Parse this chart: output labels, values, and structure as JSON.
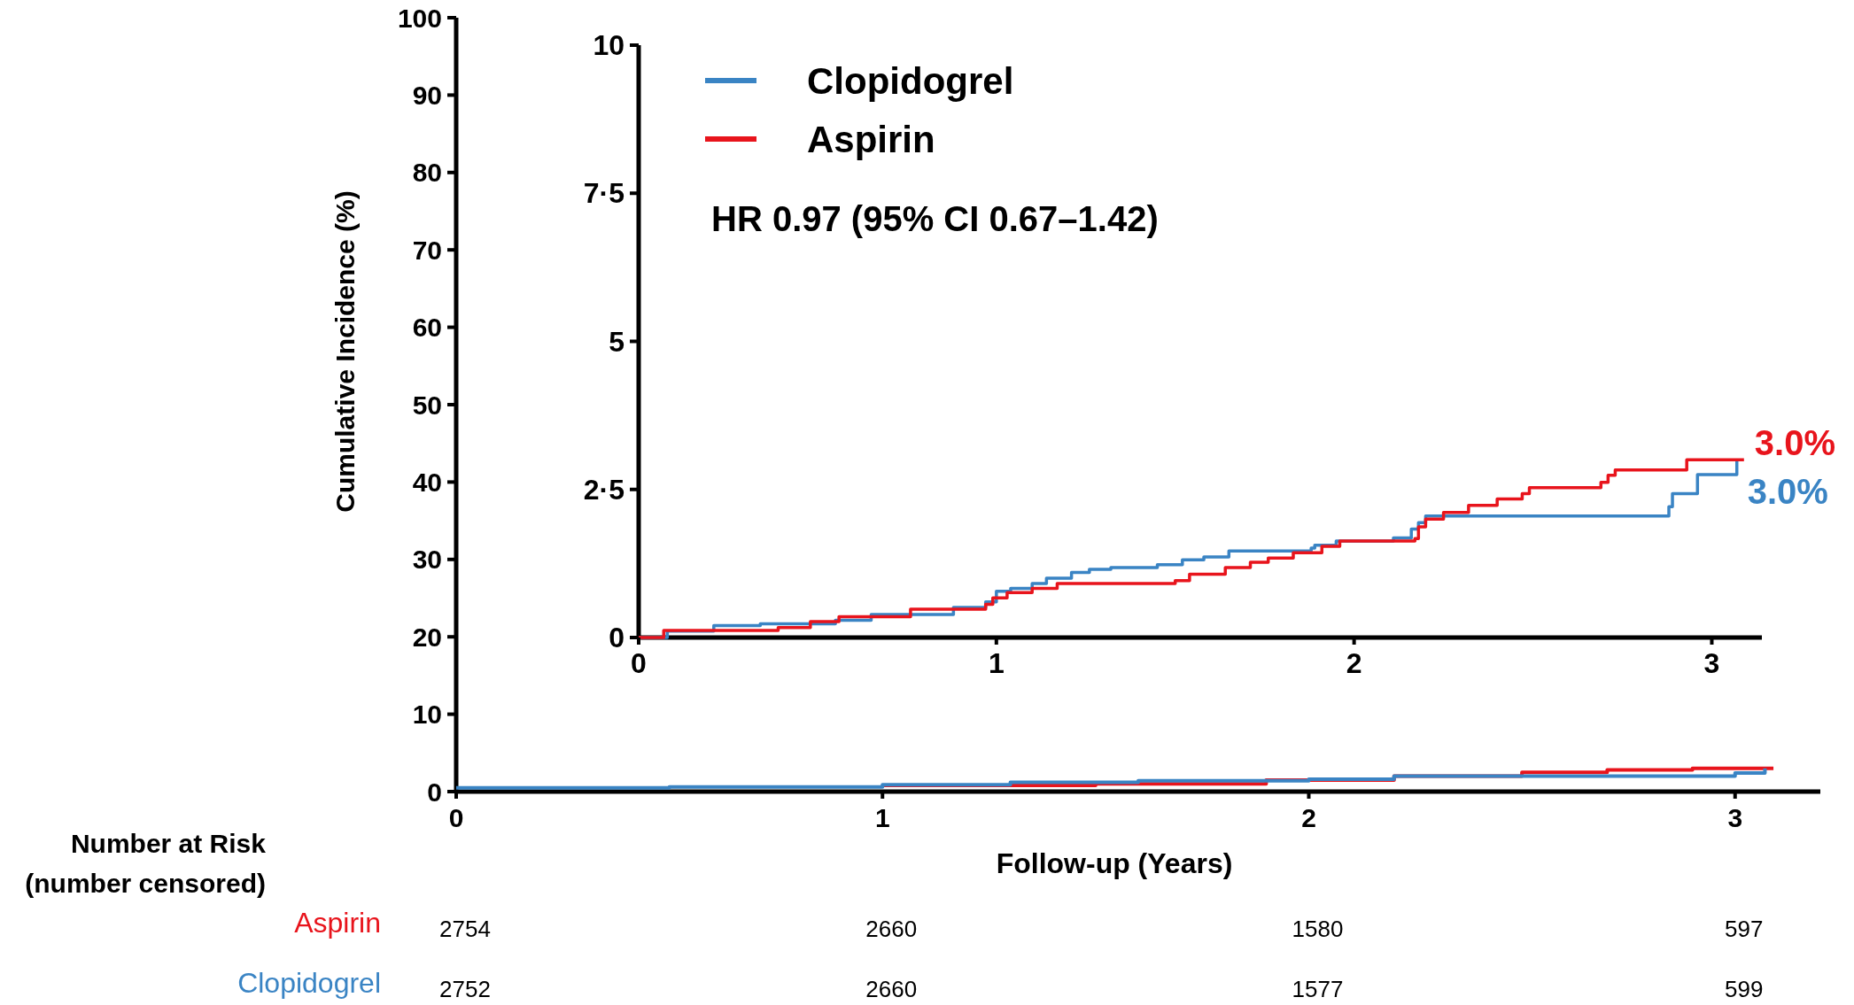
{
  "chart_data": [
    {
      "type": "step",
      "xlabel": "Follow-up (Years)",
      "ylabel": "Cumulative Incidence (%)",
      "xlim": [
        0,
        3.2
      ],
      "ylim": [
        0,
        100
      ],
      "xticks": [
        0,
        1,
        2,
        3
      ],
      "yticks": [
        0,
        10,
        20,
        30,
        40,
        50,
        60,
        70,
        80,
        90,
        100
      ],
      "grid": false,
      "legend": false,
      "series": [
        {
          "color": "#e8141c",
          "x": [
            1.0,
            1.5,
            1.9,
            2.2,
            2.5,
            2.7,
            2.9,
            3.09
          ],
          "values": [
            0.8,
            1.0,
            1.5,
            2.0,
            2.5,
            2.8,
            3.0,
            3.0
          ]
        },
        {
          "color": "#3a84c4",
          "x": [
            0,
            0.5,
            1.0,
            1.3,
            1.6,
            2.0,
            2.2,
            2.9,
            3.0,
            3.07
          ],
          "values": [
            0.5,
            0.6,
            0.9,
            1.2,
            1.4,
            1.6,
            2.0,
            2.0,
            2.4,
            3.0
          ]
        }
      ],
      "annotations": [
        "Number at Risk",
        "(number censored)",
        "Aspirin",
        "2754",
        "2660",
        "1580",
        "597",
        "Clopidogrel",
        "2752",
        "2660",
        "1577",
        "599"
      ]
    },
    {
      "type": "step",
      "xlim": [
        0,
        3.14
      ],
      "ylim": [
        0,
        10
      ],
      "xticks": [
        0,
        1,
        2,
        3
      ],
      "yticks": [
        0,
        {
          "value": 2.5,
          "label": "2·5"
        },
        5,
        {
          "value": 7.5,
          "label": "7·5"
        },
        10
      ],
      "grid": false,
      "legend": "top left",
      "series": [
        {
          "name": "Clopidogrel",
          "color": "#3a84c4",
          "x": [
            0,
            0.08,
            0.21,
            0.34,
            0.55,
            0.65,
            0.88,
            0.97,
            1.0,
            1.04,
            1.1,
            1.14,
            1.21,
            1.26,
            1.32,
            1.45,
            1.52,
            1.58,
            1.65,
            1.88,
            1.89,
            1.95,
            2.11,
            2.16,
            2.18,
            2.2,
            2.87,
            2.88,
            2.89,
            2.95,
            2.96,
            3.03,
            3.07
          ],
          "values": [
            0,
            0.11,
            0.2,
            0.23,
            0.29,
            0.39,
            0.51,
            0.6,
            0.78,
            0.83,
            0.91,
            1.0,
            1.1,
            1.15,
            1.18,
            1.23,
            1.31,
            1.36,
            1.46,
            1.51,
            1.56,
            1.63,
            1.68,
            1.83,
            1.94,
            2.05,
            2.05,
            2.21,
            2.43,
            2.43,
            2.75,
            2.75,
            3.0
          ]
        },
        {
          "name": "Aspirin",
          "color": "#e8141c",
          "x": [
            0,
            0.07,
            0.39,
            0.48,
            0.56,
            0.76,
            0.97,
            0.99,
            1.03,
            1.1,
            1.17,
            1.5,
            1.54,
            1.64,
            1.71,
            1.76,
            1.83,
            1.91,
            1.96,
            2.17,
            2.18,
            2.2,
            2.25,
            2.32,
            2.4,
            2.47,
            2.49,
            2.69,
            2.71,
            2.73,
            2.93,
            3.09
          ],
          "values": [
            0,
            0.12,
            0.17,
            0.27,
            0.35,
            0.48,
            0.56,
            0.67,
            0.76,
            0.83,
            0.91,
            0.96,
            1.07,
            1.18,
            1.27,
            1.34,
            1.43,
            1.54,
            1.63,
            1.67,
            1.87,
            2.0,
            2.11,
            2.23,
            2.34,
            2.43,
            2.53,
            2.62,
            2.74,
            2.83,
            3.0,
            3.0
          ]
        }
      ],
      "annotations": [
        "HR 0.97 (95% CI 0.67–1.42)",
        {
          "text": "3.0%",
          "x": 3.09,
          "y": 3.0
        },
        {
          "text": "3.0%",
          "x": 3.07,
          "y": 3.0
        }
      ]
    }
  ]
}
